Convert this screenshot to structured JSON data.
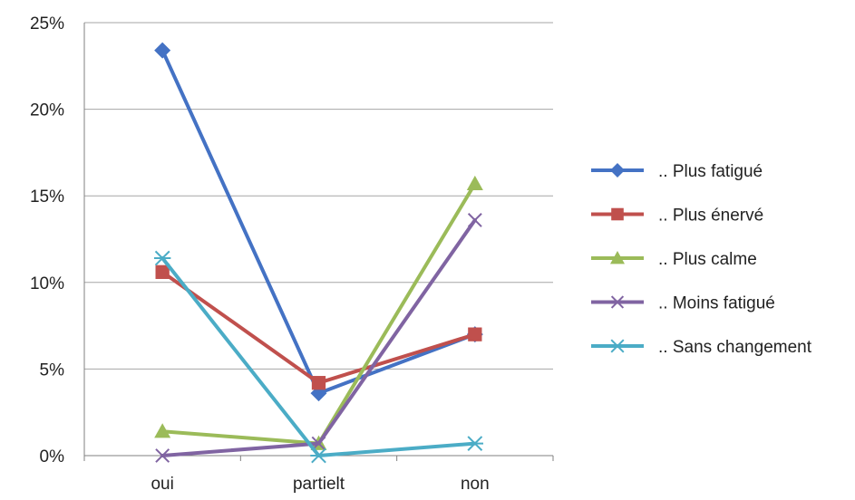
{
  "chart_data": {
    "type": "line",
    "categories": [
      "oui",
      "partielt",
      "non"
    ],
    "ylim": [
      0,
      25
    ],
    "yticks": [
      0,
      5,
      10,
      15,
      20,
      25
    ],
    "ytick_labels": [
      "0%",
      "5%",
      "10%",
      "15%",
      "20%",
      "25%"
    ],
    "grid": true,
    "legend_position": "right",
    "series": [
      {
        "name": ".. Plus fatigué",
        "values": [
          23.4,
          3.6,
          7.0
        ],
        "color": "#4472C4",
        "marker": "diamond"
      },
      {
        "name": ".. Plus énervé",
        "values": [
          10.6,
          4.2,
          7.0
        ],
        "color": "#C0504D",
        "marker": "square"
      },
      {
        "name": ".. Plus calme",
        "values": [
          1.4,
          0.7,
          15.7
        ],
        "color": "#9BBB59",
        "marker": "triangle"
      },
      {
        "name": ".. Moins fatigué",
        "values": [
          0.0,
          0.7,
          13.6
        ],
        "color": "#8064A2",
        "marker": "x"
      },
      {
        "name": ".. Sans changement",
        "values": [
          11.4,
          0.0,
          0.7
        ],
        "color": "#4BACC6",
        "marker": "star"
      }
    ]
  }
}
